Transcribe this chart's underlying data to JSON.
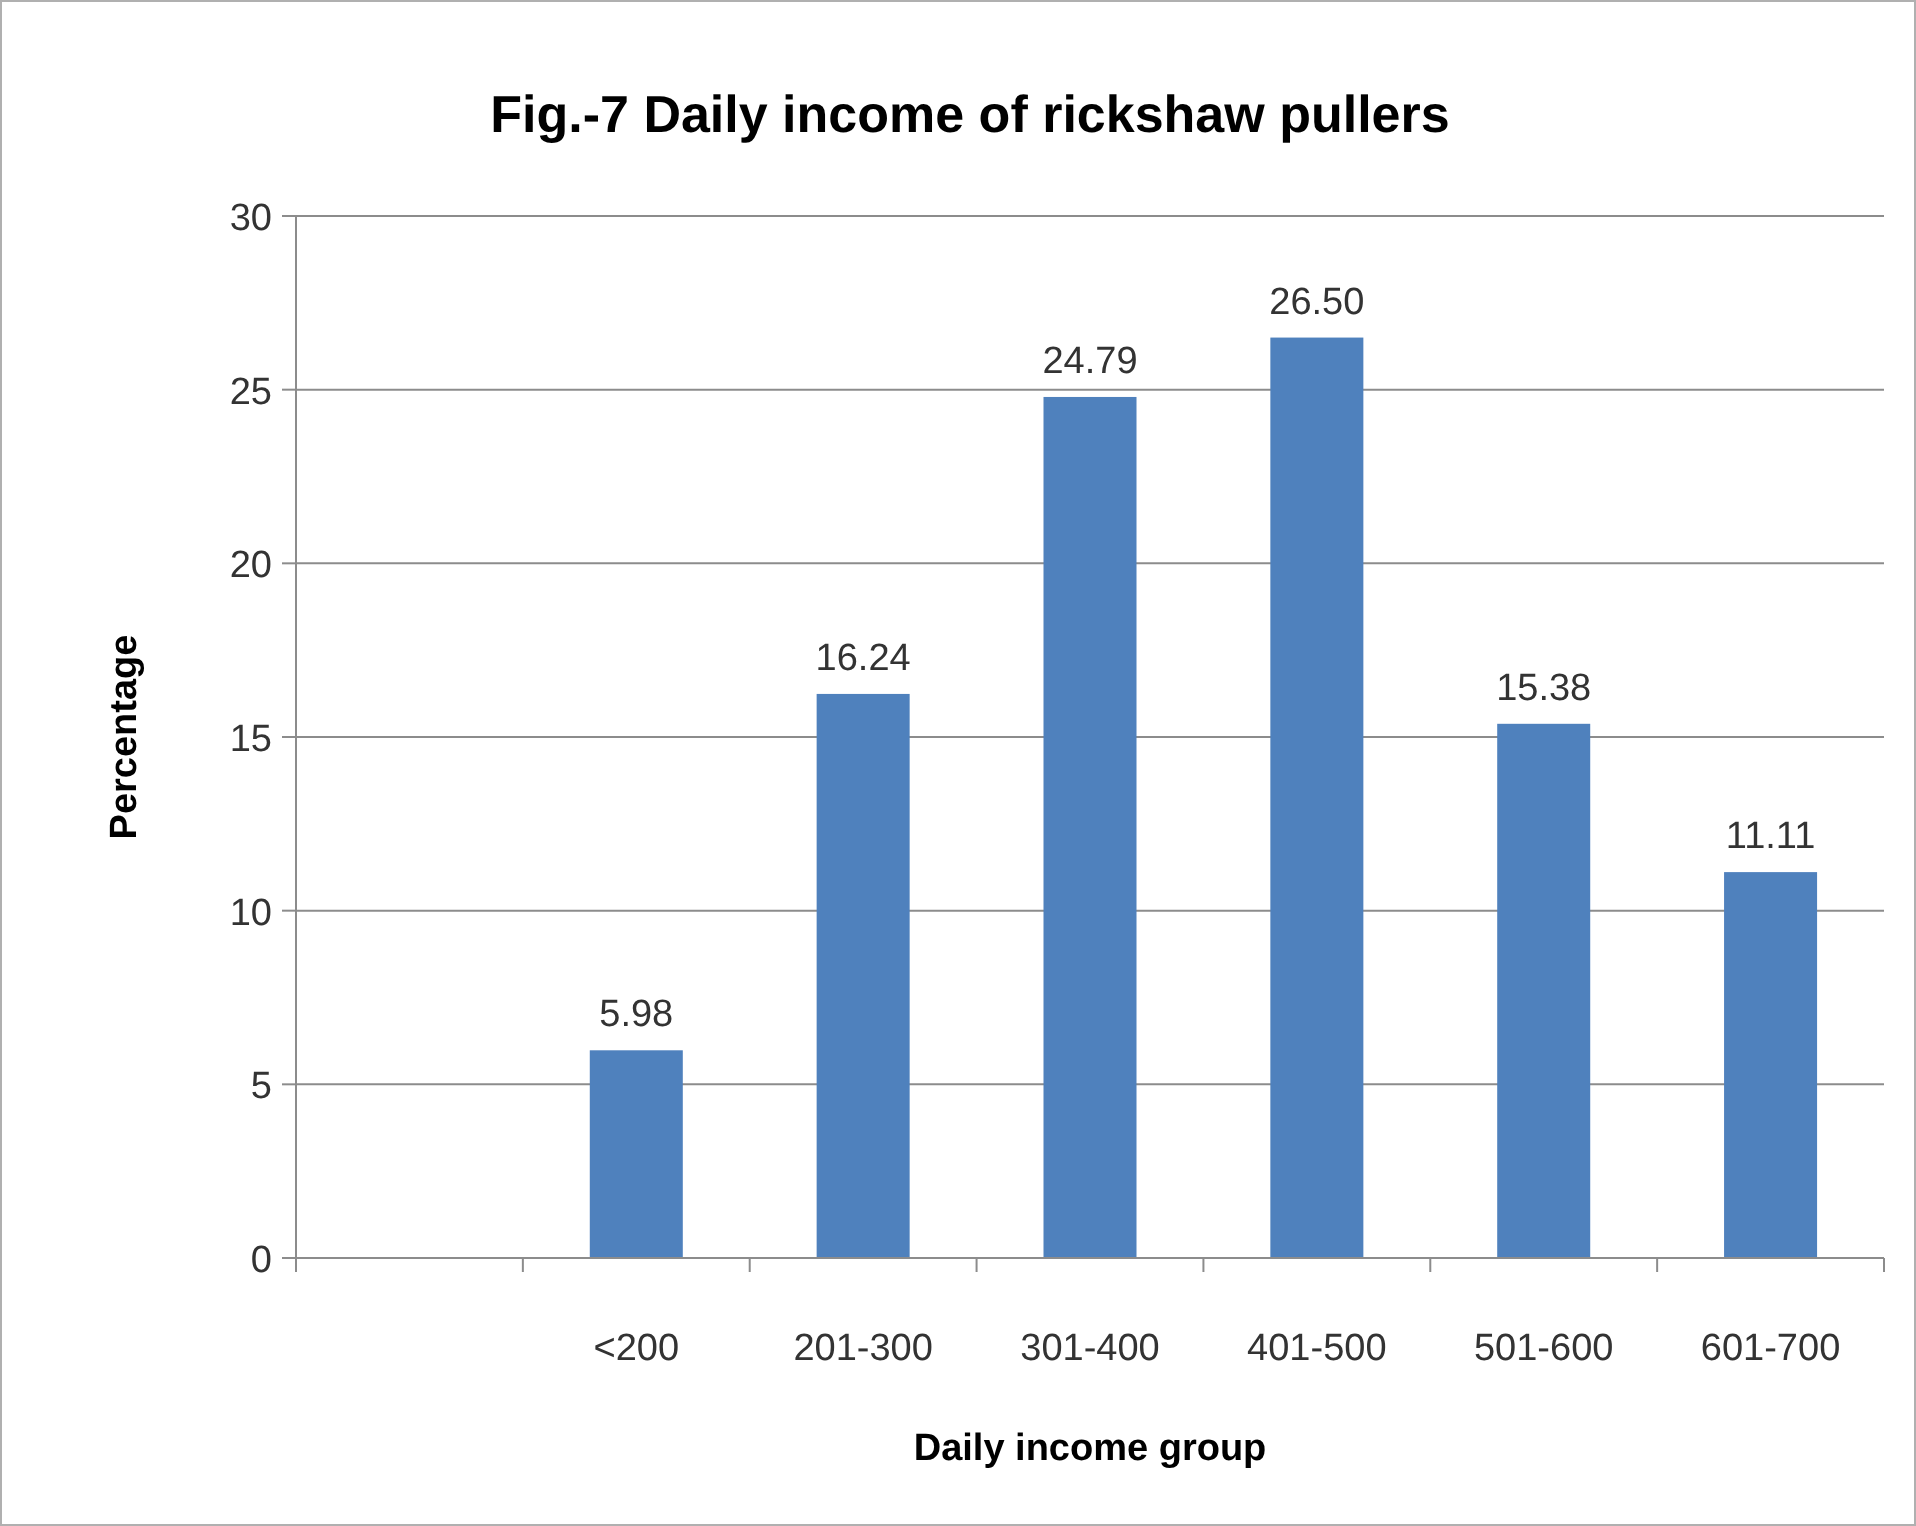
{
  "chart_data": {
    "type": "bar",
    "title": "Fig.-7 Daily income of rickshaw pullers",
    "xlabel": "Daily income group",
    "ylabel": "Percentage",
    "categories": [
      null,
      "<200",
      "201-300",
      "301-400",
      "401-500",
      "501-600",
      "601-700"
    ],
    "values": [
      null,
      5.98,
      16.24,
      24.79,
      26.5,
      15.38,
      11.11
    ],
    "value_labels": [
      null,
      "5.98",
      "16.24",
      "24.79",
      "26.50",
      "15.38",
      "11.11"
    ],
    "color": "#4f81bd",
    "ylim": [
      0,
      30
    ],
    "yticks": [
      0,
      5,
      10,
      15,
      20,
      25,
      30
    ],
    "grid": "y"
  }
}
